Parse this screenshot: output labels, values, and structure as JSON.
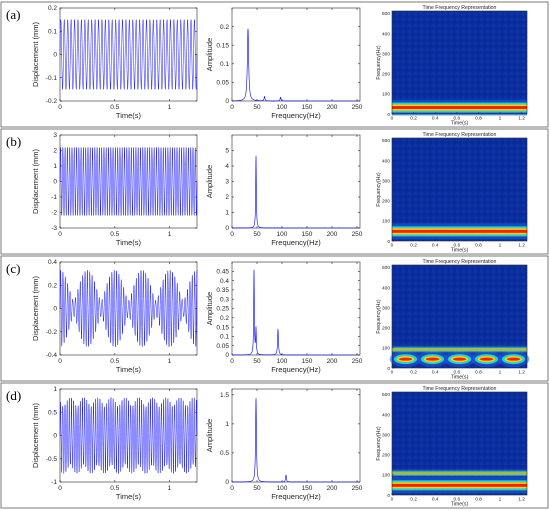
{
  "figure": {
    "panel_labels": [
      "(a)",
      "(b)",
      "(c)",
      "(d)"
    ],
    "spectrogram_title": "Time Frequency Representation",
    "spectrogram_xlabel": "Time(s)",
    "spectrogram_ylabel": "Frequency(Hz)",
    "spectrogram_xticks": [
      "0",
      "0.2",
      "0.4",
      "0.6",
      "0.8",
      "1",
      "1.2"
    ],
    "spectrogram_yticks": [
      "0",
      "100",
      "200",
      "300",
      "400",
      "500"
    ],
    "colors": {
      "trace": "#0000ff",
      "spectrogram_bg": "#0a2e9e",
      "band_core": "#ff1e00",
      "band_mid": "#ffd000",
      "band_outer": "#21e3d0"
    }
  },
  "chart_data": [
    {
      "panel": "(a)",
      "type": "line",
      "title": "",
      "xlabel": "Time(s)",
      "ylabel": "Displacement (mm)",
      "xlim": [
        0,
        1.25
      ],
      "ylim": [
        -0.2,
        0.2
      ],
      "xticks": [
        "0",
        "0.5",
        "1"
      ],
      "yticks": [
        "-0.2",
        "-0.1",
        "0",
        "0.1",
        "0.2"
      ],
      "signal": {
        "components": [
          {
            "freq_hz": 32,
            "amp": 0.15
          }
        ],
        "offset": 0,
        "envelope_mod": 0
      }
    },
    {
      "panel": "(a)",
      "type": "line",
      "title": "",
      "xlabel": "Frequency(Hz)",
      "ylabel": "Amplitude",
      "xlim": [
        0,
        256
      ],
      "ylim": [
        0,
        0.25
      ],
      "xticks": [
        "0",
        "50",
        "100",
        "150",
        "200",
        "250"
      ],
      "yticks": [
        "0",
        "0.05",
        "0.1",
        "0.15",
        "0.2"
      ],
      "peaks": [
        {
          "freq_hz": 32,
          "amp": 0.195,
          "width": 3
        },
        {
          "freq_hz": 65,
          "amp": 0.012,
          "width": 2
        },
        {
          "freq_hz": 97,
          "amp": 0.01,
          "width": 2
        }
      ]
    },
    {
      "panel": "(a)",
      "type": "heatmap",
      "title": "Time Frequency Representation",
      "xlabel": "Time(s)",
      "ylabel": "Frequency(Hz)",
      "xlim": [
        0,
        1.25
      ],
      "ylim": [
        0,
        512
      ],
      "bands": [
        {
          "freq_hz": 32,
          "modulation_hz": 0
        }
      ]
    },
    {
      "panel": "(b)",
      "type": "line",
      "title": "",
      "xlabel": "Time(s)",
      "ylabel": "Displacement (mm)",
      "xlim": [
        0,
        1.25
      ],
      "ylim": [
        -3,
        3
      ],
      "xticks": [
        "0",
        "0.5",
        "1"
      ],
      "yticks": [
        "-3",
        "-2",
        "-1",
        "0",
        "1",
        "2",
        "3"
      ],
      "signal": {
        "components": [
          {
            "freq_hz": 48,
            "amp": 2.2
          }
        ],
        "offset": 0,
        "envelope_mod": 0
      }
    },
    {
      "panel": "(b)",
      "type": "line",
      "title": "",
      "xlabel": "Frequency(Hz)",
      "ylabel": "Amplitude",
      "xlim": [
        0,
        256
      ],
      "ylim": [
        0,
        6
      ],
      "xticks": [
        "0",
        "50",
        "100",
        "150",
        "200",
        "250"
      ],
      "yticks": [
        "0",
        "1",
        "2",
        "3",
        "4",
        "5"
      ],
      "peaks": [
        {
          "freq_hz": 48,
          "amp": 4.7,
          "width": 1.5
        }
      ]
    },
    {
      "panel": "(b)",
      "type": "heatmap",
      "title": "Time Frequency Representation",
      "xlabel": "Time(s)",
      "ylabel": "Frequency(Hz)",
      "xlim": [
        0,
        1.25
      ],
      "ylim": [
        0,
        512
      ],
      "bands": [
        {
          "freq_hz": 48,
          "modulation_hz": 0
        }
      ]
    },
    {
      "panel": "(c)",
      "type": "line",
      "title": "",
      "xlabel": "Time(s)",
      "ylabel": "Displacement (mm)",
      "xlim": [
        0,
        1.25
      ],
      "ylim": [
        -0.4,
        0.4
      ],
      "xticks": [
        "0",
        "0.5",
        "1"
      ],
      "yticks": [
        "-0.4",
        "-0.2",
        "0",
        "0.2",
        "0.4"
      ],
      "signal": {
        "components": [
          {
            "freq_hz": 45,
            "amp": 0.2
          },
          {
            "freq_hz": 49,
            "amp": 0.13
          }
        ],
        "offset": 0,
        "envelope_mod": 0
      }
    },
    {
      "panel": "(c)",
      "type": "line",
      "title": "",
      "xlabel": "Frequency(Hz)",
      "ylabel": "Amplitude",
      "xlim": [
        0,
        256
      ],
      "ylim": [
        0,
        0.5
      ],
      "xticks": [
        "0",
        "50",
        "100",
        "150",
        "200",
        "250"
      ],
      "yticks": [
        "0",
        "0.05",
        "0.1",
        "0.15",
        "0.2",
        "0.25",
        "0.3",
        "0.35",
        "0.4",
        "0.45"
      ],
      "peaks": [
        {
          "freq_hz": 44,
          "amp": 0.46,
          "width": 1.5
        },
        {
          "freq_hz": 48,
          "amp": 0.14,
          "width": 1.5
        },
        {
          "freq_hz": 92,
          "amp": 0.14,
          "width": 2
        }
      ]
    },
    {
      "panel": "(c)",
      "type": "heatmap",
      "title": "Time Frequency Representation",
      "xlabel": "Time(s)",
      "ylabel": "Frequency(Hz)",
      "xlim": [
        0,
        1.25
      ],
      "ylim": [
        0,
        512
      ],
      "bands": [
        {
          "freq_hz": 44,
          "modulation_hz": 4
        },
        {
          "freq_hz": 92,
          "modulation_hz": 0
        }
      ]
    },
    {
      "panel": "(d)",
      "type": "line",
      "title": "",
      "xlabel": "Time(s)",
      "ylabel": "Displacement (mm)",
      "xlim": [
        0,
        1.25
      ],
      "ylim": [
        -1,
        1
      ],
      "xticks": [
        "0",
        "0.5",
        "1"
      ],
      "yticks": [
        "-1",
        "-0.5",
        "0",
        "0.5",
        "1"
      ],
      "signal": {
        "components": [
          {
            "freq_hz": 50,
            "amp": 0.72
          },
          {
            "freq_hz": 108,
            "amp": 0.1
          }
        ],
        "offset": 0,
        "envelope_mod": 0
      }
    },
    {
      "panel": "(d)",
      "type": "line",
      "title": "",
      "xlabel": "Frequency(Hz)",
      "ylabel": "Amplitude",
      "xlim": [
        0,
        256
      ],
      "ylim": [
        0,
        1.6
      ],
      "xticks": [
        "0",
        "50",
        "100",
        "150",
        "200",
        "250"
      ],
      "yticks": [
        "0",
        "0.5",
        "1",
        "1.5"
      ],
      "peaks": [
        {
          "freq_hz": 48,
          "amp": 1.45,
          "width": 2
        },
        {
          "freq_hz": 108,
          "amp": 0.12,
          "width": 2
        }
      ]
    },
    {
      "panel": "(d)",
      "type": "heatmap",
      "title": "Time Frequency Representation",
      "xlabel": "Time(s)",
      "ylabel": "Frequency(Hz)",
      "xlim": [
        0,
        1.25
      ],
      "ylim": [
        0,
        512
      ],
      "bands": [
        {
          "freq_hz": 48,
          "modulation_hz": 0
        },
        {
          "freq_hz": 108,
          "modulation_hz": 0
        }
      ]
    }
  ]
}
